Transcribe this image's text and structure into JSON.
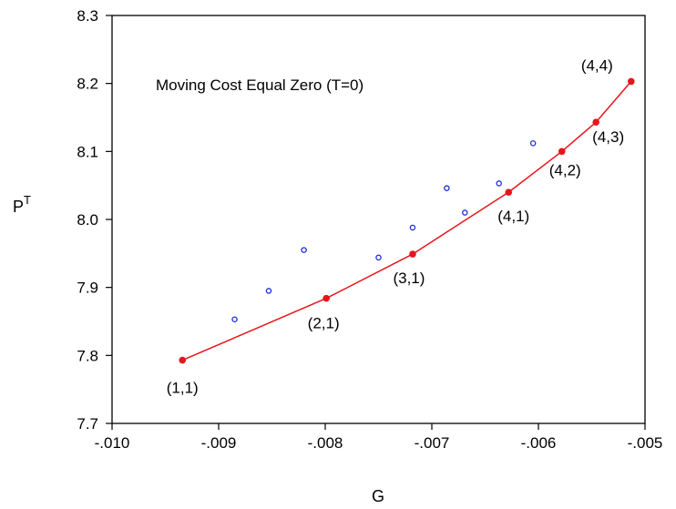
{
  "chart_data": {
    "type": "scatter",
    "title": "",
    "annotation": "Moving Cost Equal Zero (T=0)",
    "xlabel": "G",
    "ylabel": {
      "base": "P",
      "superscript": "T"
    },
    "xlim": [
      -0.01,
      -0.005
    ],
    "ylim": [
      7.7,
      8.3
    ],
    "x_ticks": [
      -0.01,
      -0.009,
      -0.008,
      -0.007,
      -0.006,
      -0.005
    ],
    "x_tick_labels": [
      "-.010",
      "-.009",
      "-.008",
      "-.007",
      "-.006",
      "-.005"
    ],
    "y_ticks": [
      7.7,
      7.8,
      7.9,
      8.0,
      8.1,
      8.2,
      8.3
    ],
    "y_tick_labels": [
      "7.7",
      "7.8",
      "7.9",
      "8.0",
      "8.1",
      "8.2",
      "8.3"
    ],
    "grid": false,
    "legend": "none",
    "series": [
      {
        "style": "line-with-filled-markers",
        "color": "#e8141c",
        "points": [
          {
            "x": -0.00934,
            "y": 7.793,
            "label": "(1,1)"
          },
          {
            "x": -0.00799,
            "y": 7.884,
            "label": "(2,1)"
          },
          {
            "x": -0.00718,
            "y": 7.949,
            "label": "(3,1)"
          },
          {
            "x": -0.00628,
            "y": 8.04,
            "label": "(4,1)"
          },
          {
            "x": -0.00578,
            "y": 8.1,
            "label": "(4,2)"
          },
          {
            "x": -0.00546,
            "y": 8.143,
            "label": "(4,3)"
          },
          {
            "x": -0.00513,
            "y": 8.203,
            "label": "(4,4)"
          }
        ]
      },
      {
        "style": "hollow-markers",
        "color": "#1a2bd6",
        "points": [
          {
            "x": -0.00885,
            "y": 7.853
          },
          {
            "x": -0.00853,
            "y": 7.895
          },
          {
            "x": -0.0082,
            "y": 7.955
          },
          {
            "x": -0.0075,
            "y": 7.944
          },
          {
            "x": -0.00718,
            "y": 7.988
          },
          {
            "x": -0.00686,
            "y": 8.046
          },
          {
            "x": -0.00669,
            "y": 8.01
          },
          {
            "x": -0.00637,
            "y": 8.053
          },
          {
            "x": -0.00605,
            "y": 8.112
          }
        ]
      }
    ]
  }
}
